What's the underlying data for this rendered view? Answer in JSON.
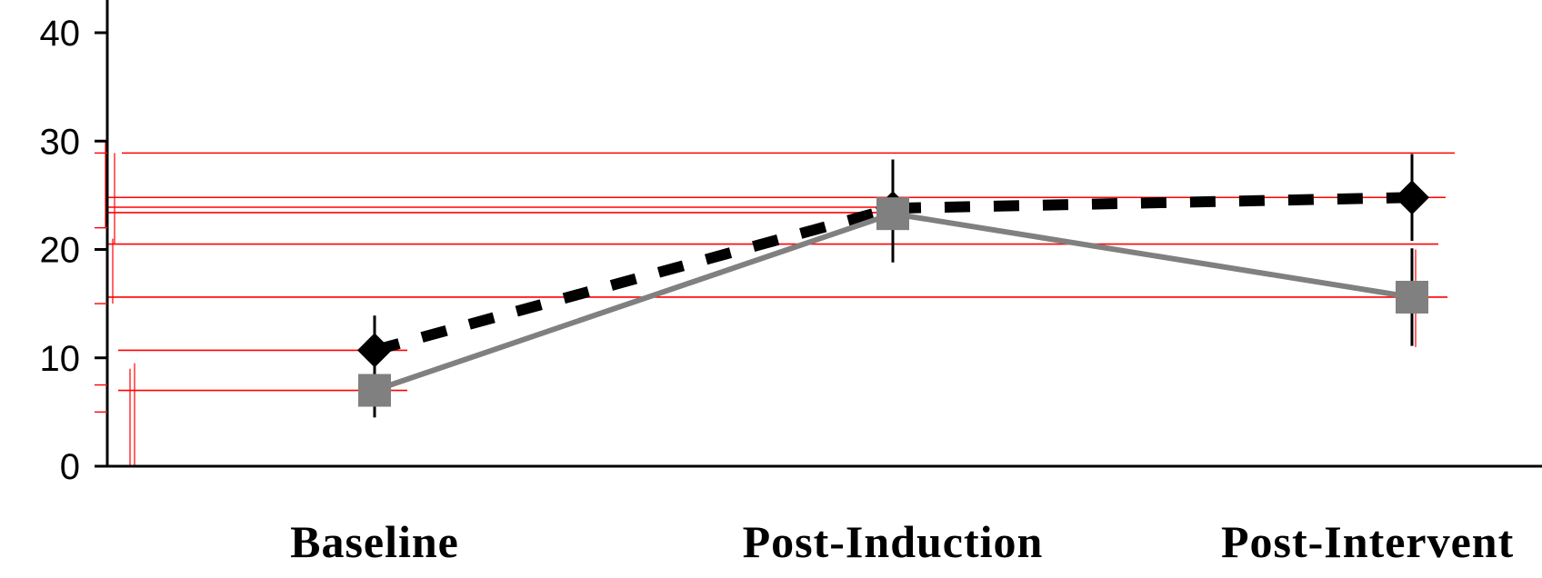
{
  "chart_data": {
    "type": "line",
    "title": "",
    "xlabel": "",
    "ylabel": "",
    "categories": [
      "Baseline",
      "Post-Induction",
      "Post-Intervent"
    ],
    "ylim": [
      0,
      40
    ],
    "yticks": [
      0,
      10,
      20,
      30,
      40
    ],
    "grid": false,
    "series": [
      {
        "values": [
          10.7,
          23.8,
          24.8
        ],
        "error": [
          3.2,
          4.5,
          4.0
        ],
        "marker": "diamond",
        "line_style": "dashed",
        "color": "#000000"
      },
      {
        "values": [
          7.0,
          23.3,
          15.6
        ],
        "error": [
          2.5,
          4.5,
          4.5
        ],
        "marker": "square",
        "line_style": "solid",
        "color": "#808080"
      }
    ],
    "reference_lines": [
      28.9,
      24.8,
      23.9,
      23.4,
      20.5,
      15.6,
      10.7,
      7.0
    ],
    "reference_color": "#ff0000"
  }
}
